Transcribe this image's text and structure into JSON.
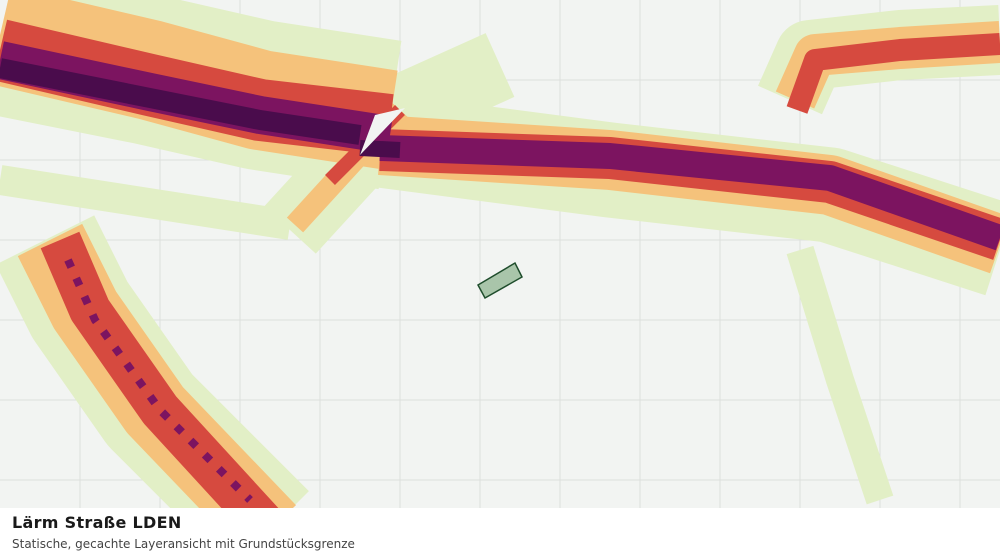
{
  "legend_panel": {
    "title": "Lärm Straße LDEN",
    "subtitle": "Statische, gecachte Layeransicht mit Grundstücksgrenze"
  }
}
